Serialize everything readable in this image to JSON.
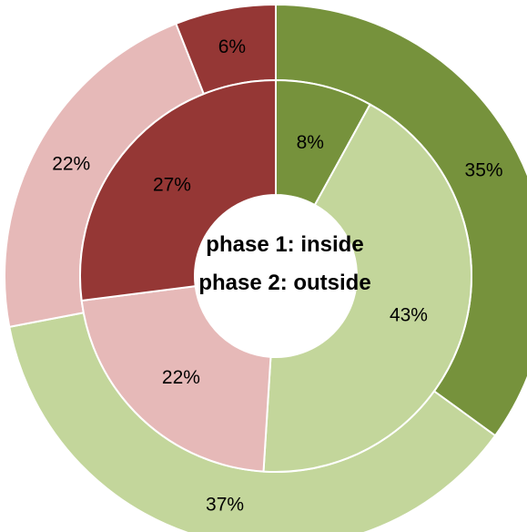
{
  "chart_data": {
    "type": "doughnut",
    "center_text": [
      "phase 1: inside",
      "phase 2: outside"
    ],
    "rings": [
      {
        "ring": "inner",
        "values": [
          8,
          43,
          22,
          27
        ],
        "labels": [
          "8%",
          "43%",
          "22%",
          "27%"
        ],
        "colors": [
          "#76923c",
          "#c3d69b",
          "#e6b9b8",
          "#953735"
        ]
      },
      {
        "ring": "outer",
        "values": [
          35,
          37,
          22,
          6
        ],
        "labels": [
          "35%",
          "37%",
          "22%",
          "6%"
        ],
        "colors": [
          "#76923c",
          "#c3d69b",
          "#e6b9b8",
          "#953735"
        ]
      }
    ]
  }
}
